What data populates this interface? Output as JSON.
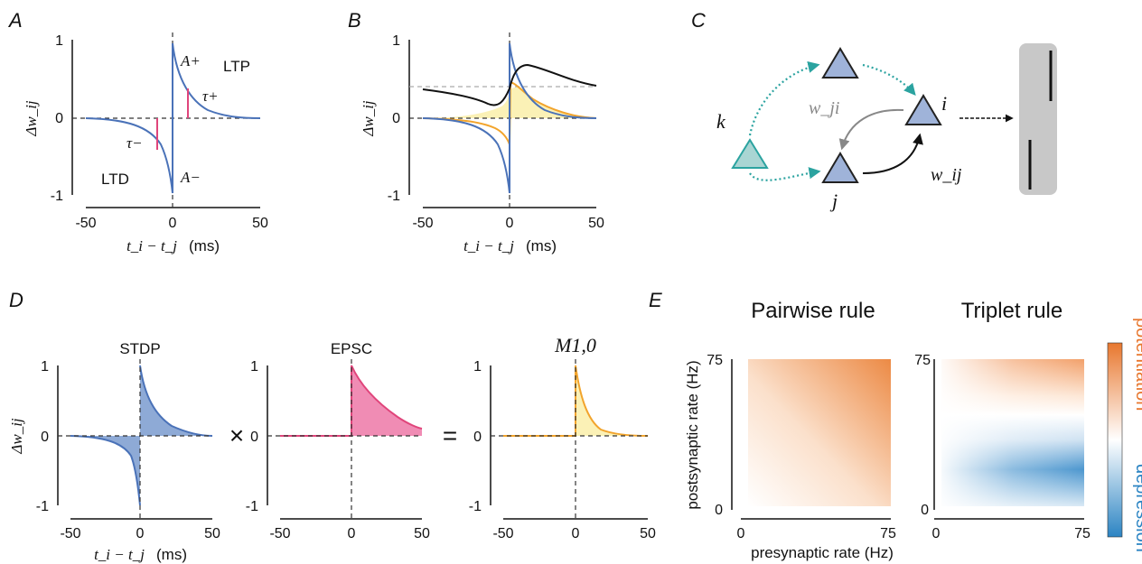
{
  "panels": {
    "A": {
      "label": "A",
      "ylabel": "Δw_ij",
      "xlabel_math": "t_i − t_j",
      "xlabel_unit": "(ms)",
      "xticks": [
        "-50",
        "0",
        "50"
      ],
      "yticks": [
        "1",
        "0",
        "-1"
      ],
      "annotations": {
        "A_plus": "A+",
        "A_minus": "A−",
        "tau_plus": "τ+",
        "tau_minus": "τ−",
        "ltp": "LTP",
        "ltd": "LTD"
      }
    },
    "B": {
      "label": "B",
      "ylabel": "Δw_ij",
      "xlabel_math": "t_i − t_j",
      "xlabel_unit": "(ms)",
      "xticks": [
        "-50",
        "0",
        "50"
      ],
      "yticks": [
        "1",
        "0",
        "-1"
      ]
    },
    "C": {
      "label": "C",
      "nodes": {
        "k": "k",
        "i": "i",
        "j": "j"
      },
      "edges": {
        "w_ji": "w_ji",
        "w_ij": "w_ij"
      }
    },
    "D": {
      "label": "D",
      "subplots": [
        {
          "title": "STDP",
          "xticks": [
            "-50",
            "0",
            "50"
          ],
          "yticks": [
            "1",
            "0",
            "-1"
          ]
        },
        {
          "title": "EPSC",
          "xticks": [
            "-50",
            "0",
            "50"
          ],
          "yticks": [
            "1",
            "0",
            "-1"
          ]
        },
        {
          "title": "M1,0",
          "xticks": [
            "-50",
            "0",
            "50"
          ],
          "yticks": [
            "1",
            "0",
            "-1"
          ]
        }
      ],
      "ylabel": "Δw_ij",
      "xlabel_math": "t_i − t_j",
      "xlabel_unit": "(ms)",
      "operators": {
        "times": "×",
        "equals": "="
      }
    },
    "E": {
      "label": "E",
      "titles": [
        "Pairwise rule",
        "Triplet rule"
      ],
      "ylabel": "postsynaptic rate (Hz)",
      "xlabel": "presynaptic rate (Hz)",
      "ticks": [
        "0",
        "75"
      ],
      "colorbar": {
        "top": "potentiation",
        "bottom": "depression"
      }
    }
  },
  "colors": {
    "ltp_ltd_curve": "#4a72b8",
    "tau_marker": "#e0457b",
    "orange": "#f2a42c",
    "yellow_fill": "#fbf1b6",
    "epsc": "#e0457b",
    "teal": "#2ba3a0",
    "neuron": "#9fb3d9",
    "potentiation": "#e8772e",
    "depression": "#2b84c3"
  },
  "chart_data": [
    {
      "panel": "A",
      "type": "line",
      "x_range": [
        -50,
        50
      ],
      "ylim": [
        -1,
        1
      ],
      "series": [
        {
          "values_x": [
            0.5,
            10,
            20,
            30,
            50
          ],
          "values_y": [
            0.98,
            0.37,
            0.14,
            0.05,
            0.01
          ]
        },
        {
          "values_x": [
            -50,
            -30,
            -20,
            -10,
            -0.5
          ],
          "values_y": [
            -0.01,
            -0.05,
            -0.14,
            -0.37,
            -0.98
          ]
        }
      ]
    },
    {
      "panel": "B",
      "type": "line",
      "x_range": [
        -50,
        50
      ],
      "ylim": [
        -1,
        1
      ],
      "series": [
        {
          "values_x": [
            -50,
            -20,
            -5,
            0,
            5,
            20,
            50
          ],
          "values_y": [
            0.35,
            0.28,
            0.2,
            0.4,
            0.68,
            0.55,
            0.42
          ]
        },
        {
          "values_x": [
            -50,
            -10,
            0,
            5,
            20,
            50
          ],
          "values_y": [
            0,
            -0.1,
            -0.35,
            0.42,
            0.12,
            0
          ]
        }
      ],
      "reference_y": 0.4
    },
    {
      "panel": "D-STDP",
      "type": "area",
      "x_range": [
        -50,
        50
      ],
      "ylim": [
        -1,
        1
      ]
    },
    {
      "panel": "D-EPSC",
      "type": "area",
      "x_range": [
        -50,
        50
      ],
      "ylim": [
        -1,
        1
      ]
    },
    {
      "panel": "D-M",
      "type": "area",
      "x_range": [
        -50,
        50
      ],
      "ylim": [
        -1,
        1
      ]
    },
    {
      "panel": "E-pairwise",
      "type": "heatmap",
      "x_range": [
        0,
        75
      ],
      "y_range": [
        0,
        75
      ]
    },
    {
      "panel": "E-triplet",
      "type": "heatmap",
      "x_range": [
        0,
        75
      ],
      "y_range": [
        0,
        75
      ]
    }
  ]
}
